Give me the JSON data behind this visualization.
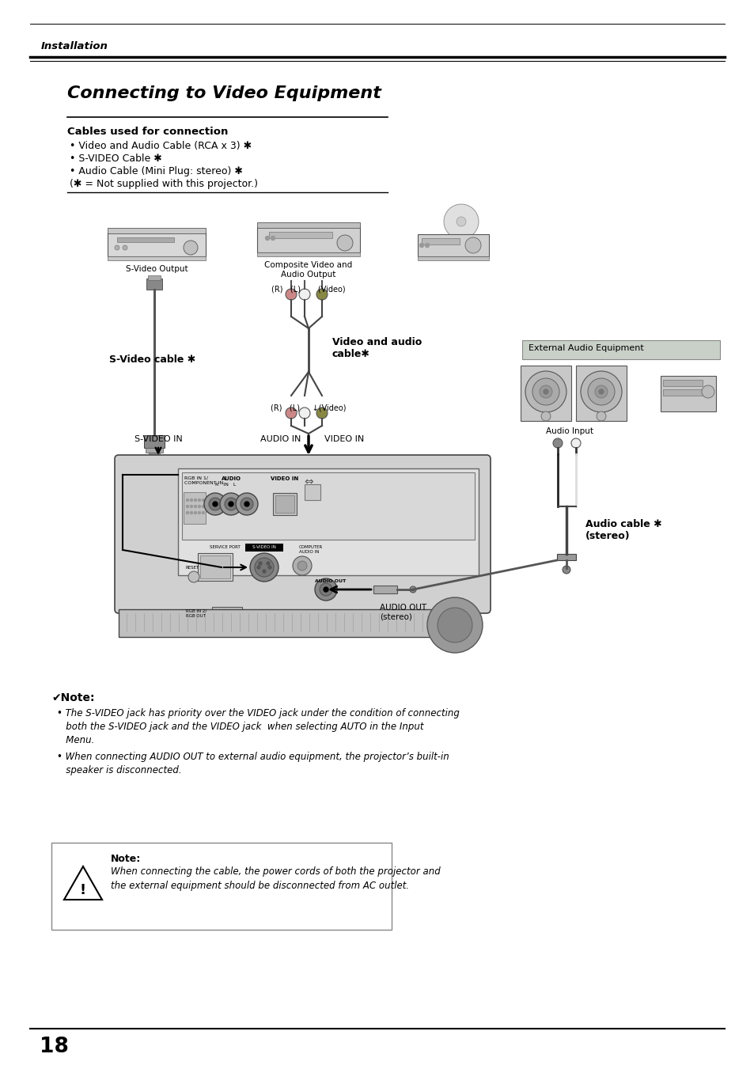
{
  "bg_color": "#ffffff",
  "page_num": "18",
  "header_text": "Installation",
  "title": "Connecting to Video Equipment",
  "section_title": "Cables used for connection",
  "bullet_items": [
    "• Video and Audio Cable (RCA x 3) ✱",
    "• S-VIDEO Cable ✱",
    "• Audio Cable (Mini Plug: stereo) ✱",
    "(✱ = Not supplied with this projector.)"
  ],
  "diagram_labels": {
    "s_video_output": "S-Video Output",
    "composite_video": "Composite Video and\nAudio Output",
    "rl_video_top": "(R)   (L)       (Video)",
    "s_video_cable": "S-Video cable ✱",
    "video_audio_cable": "Video and audio\ncable✱",
    "rl_video_bottom": "(R)   (L)     ↓(Video)",
    "s_video_in": "S-VIDEO IN",
    "audio_in": "AUDIO IN",
    "video_in": "VIDEO IN",
    "external_audio": "External Audio Equipment",
    "audio_input": "Audio Input",
    "audio_cable": "Audio cable ✱\n(stereo)",
    "audio_out_label": "AUDIO OUT\n(stereo)"
  },
  "note_header": "✔Note:",
  "note_bullets": [
    "• The S-VIDEO jack has priority over the VIDEO jack under the condition of connecting\n   both the S-VIDEO jack and the VIDEO jack  when selecting AUTO in the Input\n   Menu.",
    "• When connecting AUDIO OUT to external audio equipment, the projector’s built-in\n   speaker is disconnected."
  ],
  "caution_title": "Note:",
  "caution_text": "When connecting the cable, the power cords of both the projector and\nthe external equipment should be disconnected from AC outlet."
}
